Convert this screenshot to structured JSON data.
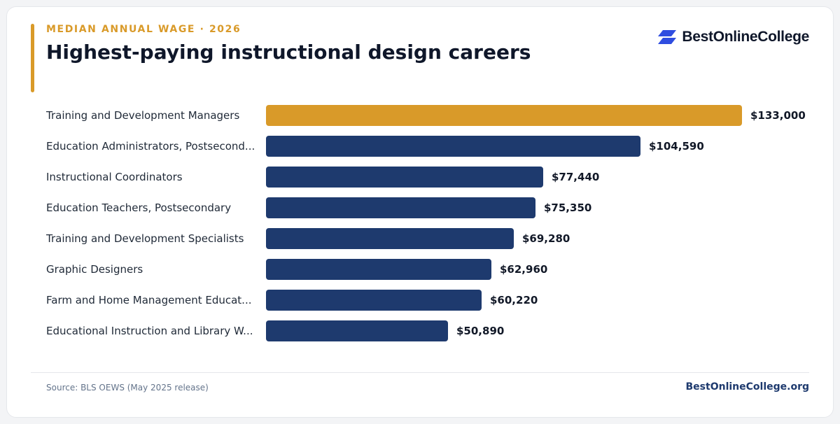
{
  "header": {
    "eyebrow": "MEDIAN ANNUAL WAGE · 2026",
    "title": "Highest-paying instructional design careers"
  },
  "brand": {
    "name": "BestOnlineCollege",
    "icon": "stacked-parallelogram-logo",
    "icon_color": "#2f4de0"
  },
  "footer": {
    "source": "Source: BLS OEWS (May 2025 release)",
    "site": "BestOnlineCollege.org"
  },
  "colors": {
    "highlight": "#d99a29",
    "bar": "#1e3a6e"
  },
  "chart_data": {
    "type": "bar",
    "orientation": "horizontal",
    "categories": [
      "Training and Development Managers",
      "Education Administrators, Postsecond...",
      "Instructional Coordinators",
      "Education Teachers, Postsecondary",
      "Training and Development Specialists",
      "Graphic Designers",
      "Farm and Home Management Educat...",
      "Educational Instruction and Library W..."
    ],
    "values": [
      133000,
      104590,
      77440,
      75350,
      69280,
      62960,
      60220,
      50890
    ],
    "value_labels": [
      "$133,000",
      "$104,590",
      "$77,440",
      "$75,350",
      "$69,280",
      "$62,960",
      "$60,220",
      "$50,890"
    ],
    "highlight_index": 0,
    "xlim": [
      0,
      133000
    ],
    "grid": false,
    "legend": "none"
  }
}
